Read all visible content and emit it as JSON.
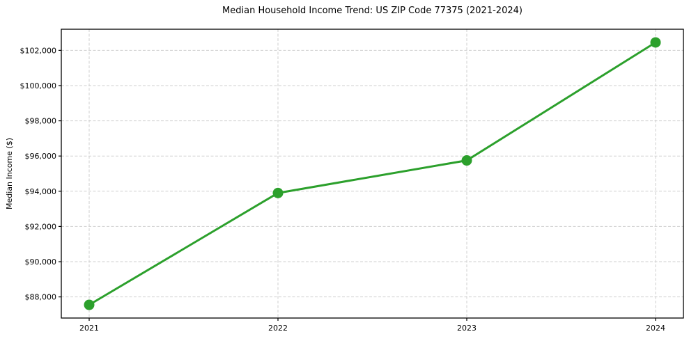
{
  "chart_data": {
    "type": "line",
    "title": "Median Household Income Trend: US ZIP Code 77375 (2021-2024)",
    "xlabel": "",
    "ylabel": "Median Income ($)",
    "categories": [
      "2021",
      "2022",
      "2023",
      "2024"
    ],
    "values": [
      87550,
      93900,
      95750,
      102450
    ],
    "ylim": [
      86800,
      103200
    ],
    "yticks": [
      88000,
      90000,
      92000,
      94000,
      96000,
      98000,
      100000,
      102000
    ],
    "ytick_prefix": "$",
    "grid": true,
    "legend_position": "none",
    "line_color": "#2ca02c",
    "marker": "circle",
    "grid_color": "#cfcfcf",
    "axis_color": "#000000",
    "background_color": "#ffffff"
  }
}
